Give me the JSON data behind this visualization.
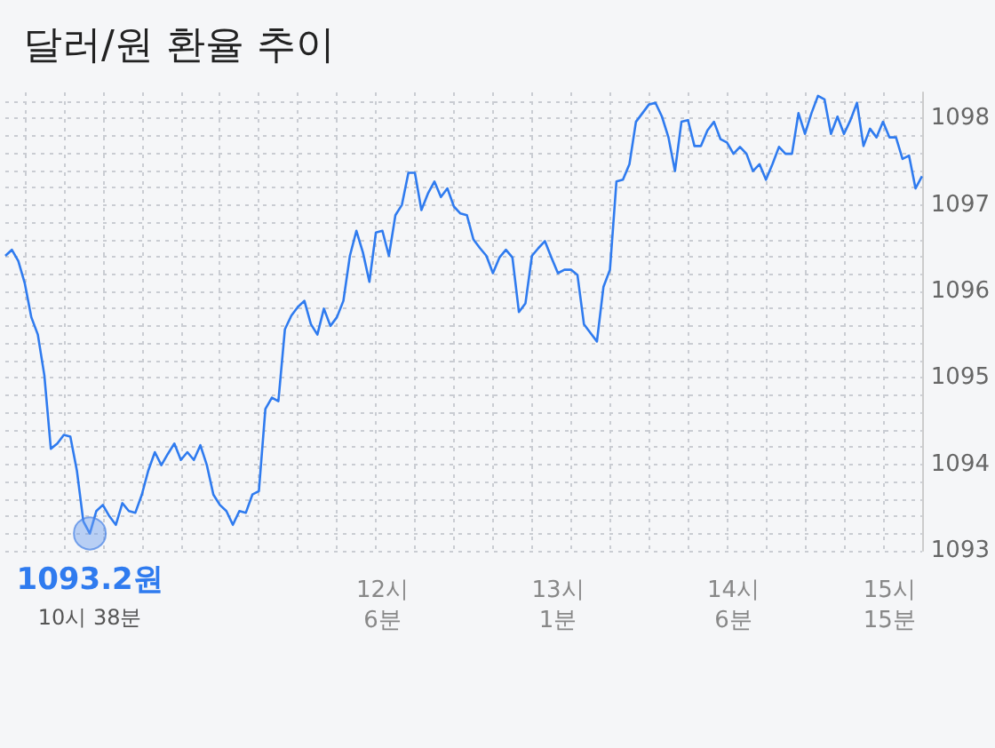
{
  "chart_data": {
    "type": "line",
    "title": "달러/원 환율 추이",
    "categories": [
      null,
      null,
      null,
      null,
      null,
      null,
      null,
      null,
      null,
      null,
      null,
      null,
      null,
      "10시 38분",
      null,
      null,
      null,
      null,
      null,
      null,
      null,
      null,
      null,
      null,
      null,
      null,
      null,
      null,
      null,
      null,
      null,
      null,
      null,
      null,
      null,
      null,
      null,
      null,
      null,
      null,
      null,
      null,
      null,
      null,
      null,
      null,
      null,
      null,
      null,
      null,
      null,
      null,
      null,
      null,
      null,
      null,
      null,
      null,
      "12시\n6분",
      null,
      null,
      null,
      null,
      null,
      null,
      null,
      null,
      null,
      null,
      null,
      null,
      null,
      null,
      null,
      null,
      null,
      null,
      null,
      null,
      null,
      null,
      null,
      null,
      null,
      null,
      "13시\n1분",
      null,
      null,
      null,
      null,
      null,
      null,
      null,
      null,
      null,
      null,
      null,
      null,
      null,
      null,
      null,
      null,
      null,
      null,
      null,
      null,
      null,
      null,
      null,
      null,
      null,
      null,
      "14시\n6분",
      null,
      null,
      null,
      null,
      null,
      null,
      null,
      null,
      null,
      null,
      null,
      null,
      null,
      null,
      null,
      null,
      null,
      null,
      null,
      null,
      null,
      null,
      null,
      "15시\n15분",
      null,
      null,
      null,
      null,
      null
    ],
    "series": [
      {
        "color": "#2f7bef",
        "values": [
          1096.41,
          1096.48,
          1096.35,
          1096.09,
          1095.7,
          1095.5,
          1095.03,
          1094.18,
          1094.24,
          1094.34,
          1094.32,
          1093.93,
          1093.34,
          1093.2,
          1093.46,
          1093.53,
          1093.4,
          1093.3,
          1093.55,
          1093.46,
          1093.44,
          1093.65,
          1093.93,
          1094.14,
          1093.99,
          1094.12,
          1094.24,
          1094.05,
          1094.14,
          1094.05,
          1094.22,
          1093.99,
          1093.65,
          1093.53,
          1093.46,
          1093.3,
          1093.46,
          1093.44,
          1093.65,
          1093.69,
          1094.64,
          1094.77,
          1094.73,
          1095.56,
          1095.72,
          1095.82,
          1095.89,
          1095.62,
          1095.5,
          1095.8,
          1095.6,
          1095.7,
          1095.89,
          1096.41,
          1096.7,
          1096.45,
          1096.11,
          1096.68,
          1096.7,
          1096.41,
          1096.88,
          1097.0,
          1097.37,
          1097.37,
          1096.94,
          1097.13,
          1097.27,
          1097.09,
          1097.19,
          1096.98,
          1096.9,
          1096.88,
          1096.6,
          1096.5,
          1096.41,
          1096.21,
          1096.39,
          1096.48,
          1096.39,
          1095.76,
          1095.86,
          1096.41,
          1096.5,
          1096.58,
          1096.39,
          1096.21,
          1096.25,
          1096.25,
          1096.19,
          1095.62,
          1095.52,
          1095.42,
          1096.05,
          1096.25,
          1097.27,
          1097.29,
          1097.47,
          1097.96,
          1098.06,
          1098.16,
          1098.18,
          1098.02,
          1097.78,
          1097.39,
          1097.96,
          1097.98,
          1097.68,
          1097.68,
          1097.86,
          1097.96,
          1097.76,
          1097.72,
          1097.59,
          1097.67,
          1097.59,
          1097.39,
          1097.47,
          1097.29,
          1097.47,
          1097.67,
          1097.59,
          1097.59,
          1098.06,
          1097.82,
          1098.06,
          1098.26,
          1098.22,
          1097.82,
          1098.02,
          1097.82,
          1097.98,
          1098.18,
          1097.68,
          1097.88,
          1097.78,
          1097.96,
          1097.78,
          1097.78,
          1097.53,
          1097.57,
          1097.19,
          1097.33
        ]
      }
    ],
    "ylim": [
      1093,
      1098.3
    ],
    "yticks": [
      1093,
      1094,
      1095,
      1096,
      1097,
      1098
    ],
    "grid": true,
    "marker": "none",
    "annotations": [
      {
        "text": "1093.2원",
        "x": "10시 38분",
        "y": 1093.2
      }
    ]
  }
}
